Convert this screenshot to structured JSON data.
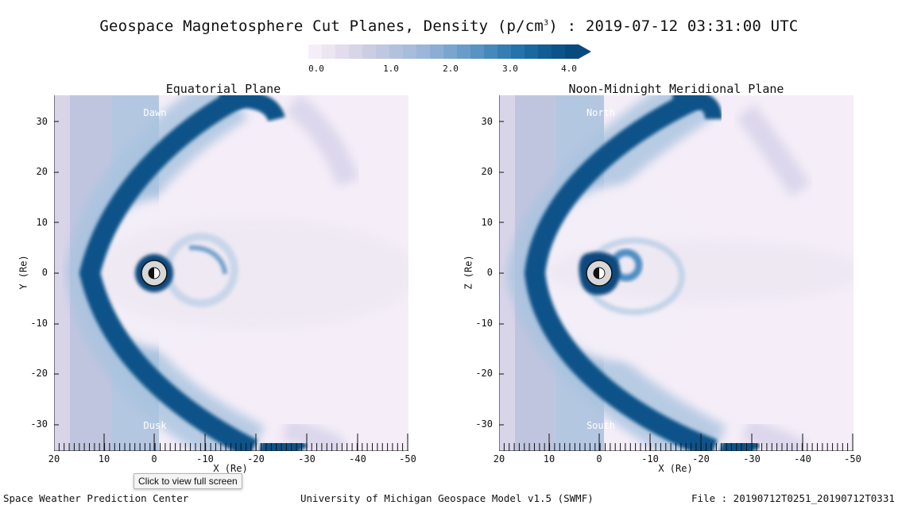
{
  "title": {
    "prefix": "Geospace Magnetosphere Cut Planes, Density (p/cm",
    "sup": "3",
    "suffix": ") : 2019-07-12 03:31:00 UTC"
  },
  "colorbar": {
    "ticks": [
      "0.0",
      "1.0",
      "2.0",
      "3.0",
      "4.0"
    ],
    "colors": [
      "#f5eef8",
      "#ece6f1",
      "#e2dcec",
      "#d7d5e8",
      "#cbcde3",
      "#c0c7e0",
      "#b3c1dd",
      "#a8bcdc",
      "#9bb6d9",
      "#8caed5",
      "#7aa5cf",
      "#6a9cc9",
      "#5893c2",
      "#4589bb",
      "#347eb2",
      "#2573aa",
      "#1a68a0",
      "#115d94",
      "#0b5389",
      "#074a7e"
    ]
  },
  "panels": [
    {
      "title": "Equatorial Plane",
      "ylabel": "Y (Re)",
      "xlabel": "X (Re)",
      "top_label": "Dawn",
      "bottom_label": "Dusk",
      "yticks": [
        "30",
        "20",
        "10",
        "0",
        "-10",
        "-20",
        "-30"
      ],
      "xticks": [
        "20",
        "10",
        "0",
        "-10",
        "-20",
        "-30",
        "-40",
        "-50"
      ]
    },
    {
      "title": "Noon-Midnight Meridional Plane",
      "ylabel": "Z (Re)",
      "xlabel": "X (Re)",
      "top_label": "North",
      "bottom_label": "South",
      "yticks": [
        "30",
        "20",
        "10",
        "0",
        "-10",
        "-20",
        "-30"
      ],
      "xticks": [
        "20",
        "10",
        "0",
        "-10",
        "-20",
        "-30",
        "-40",
        "-50"
      ]
    }
  ],
  "tooltip": "Click to view full screen",
  "footer": {
    "left": "Space Weather Prediction Center",
    "center": "University of Michigan Geospace Model v1.5 (SWMF)",
    "right": "File : 20190712T0251_20190712T0331"
  }
}
